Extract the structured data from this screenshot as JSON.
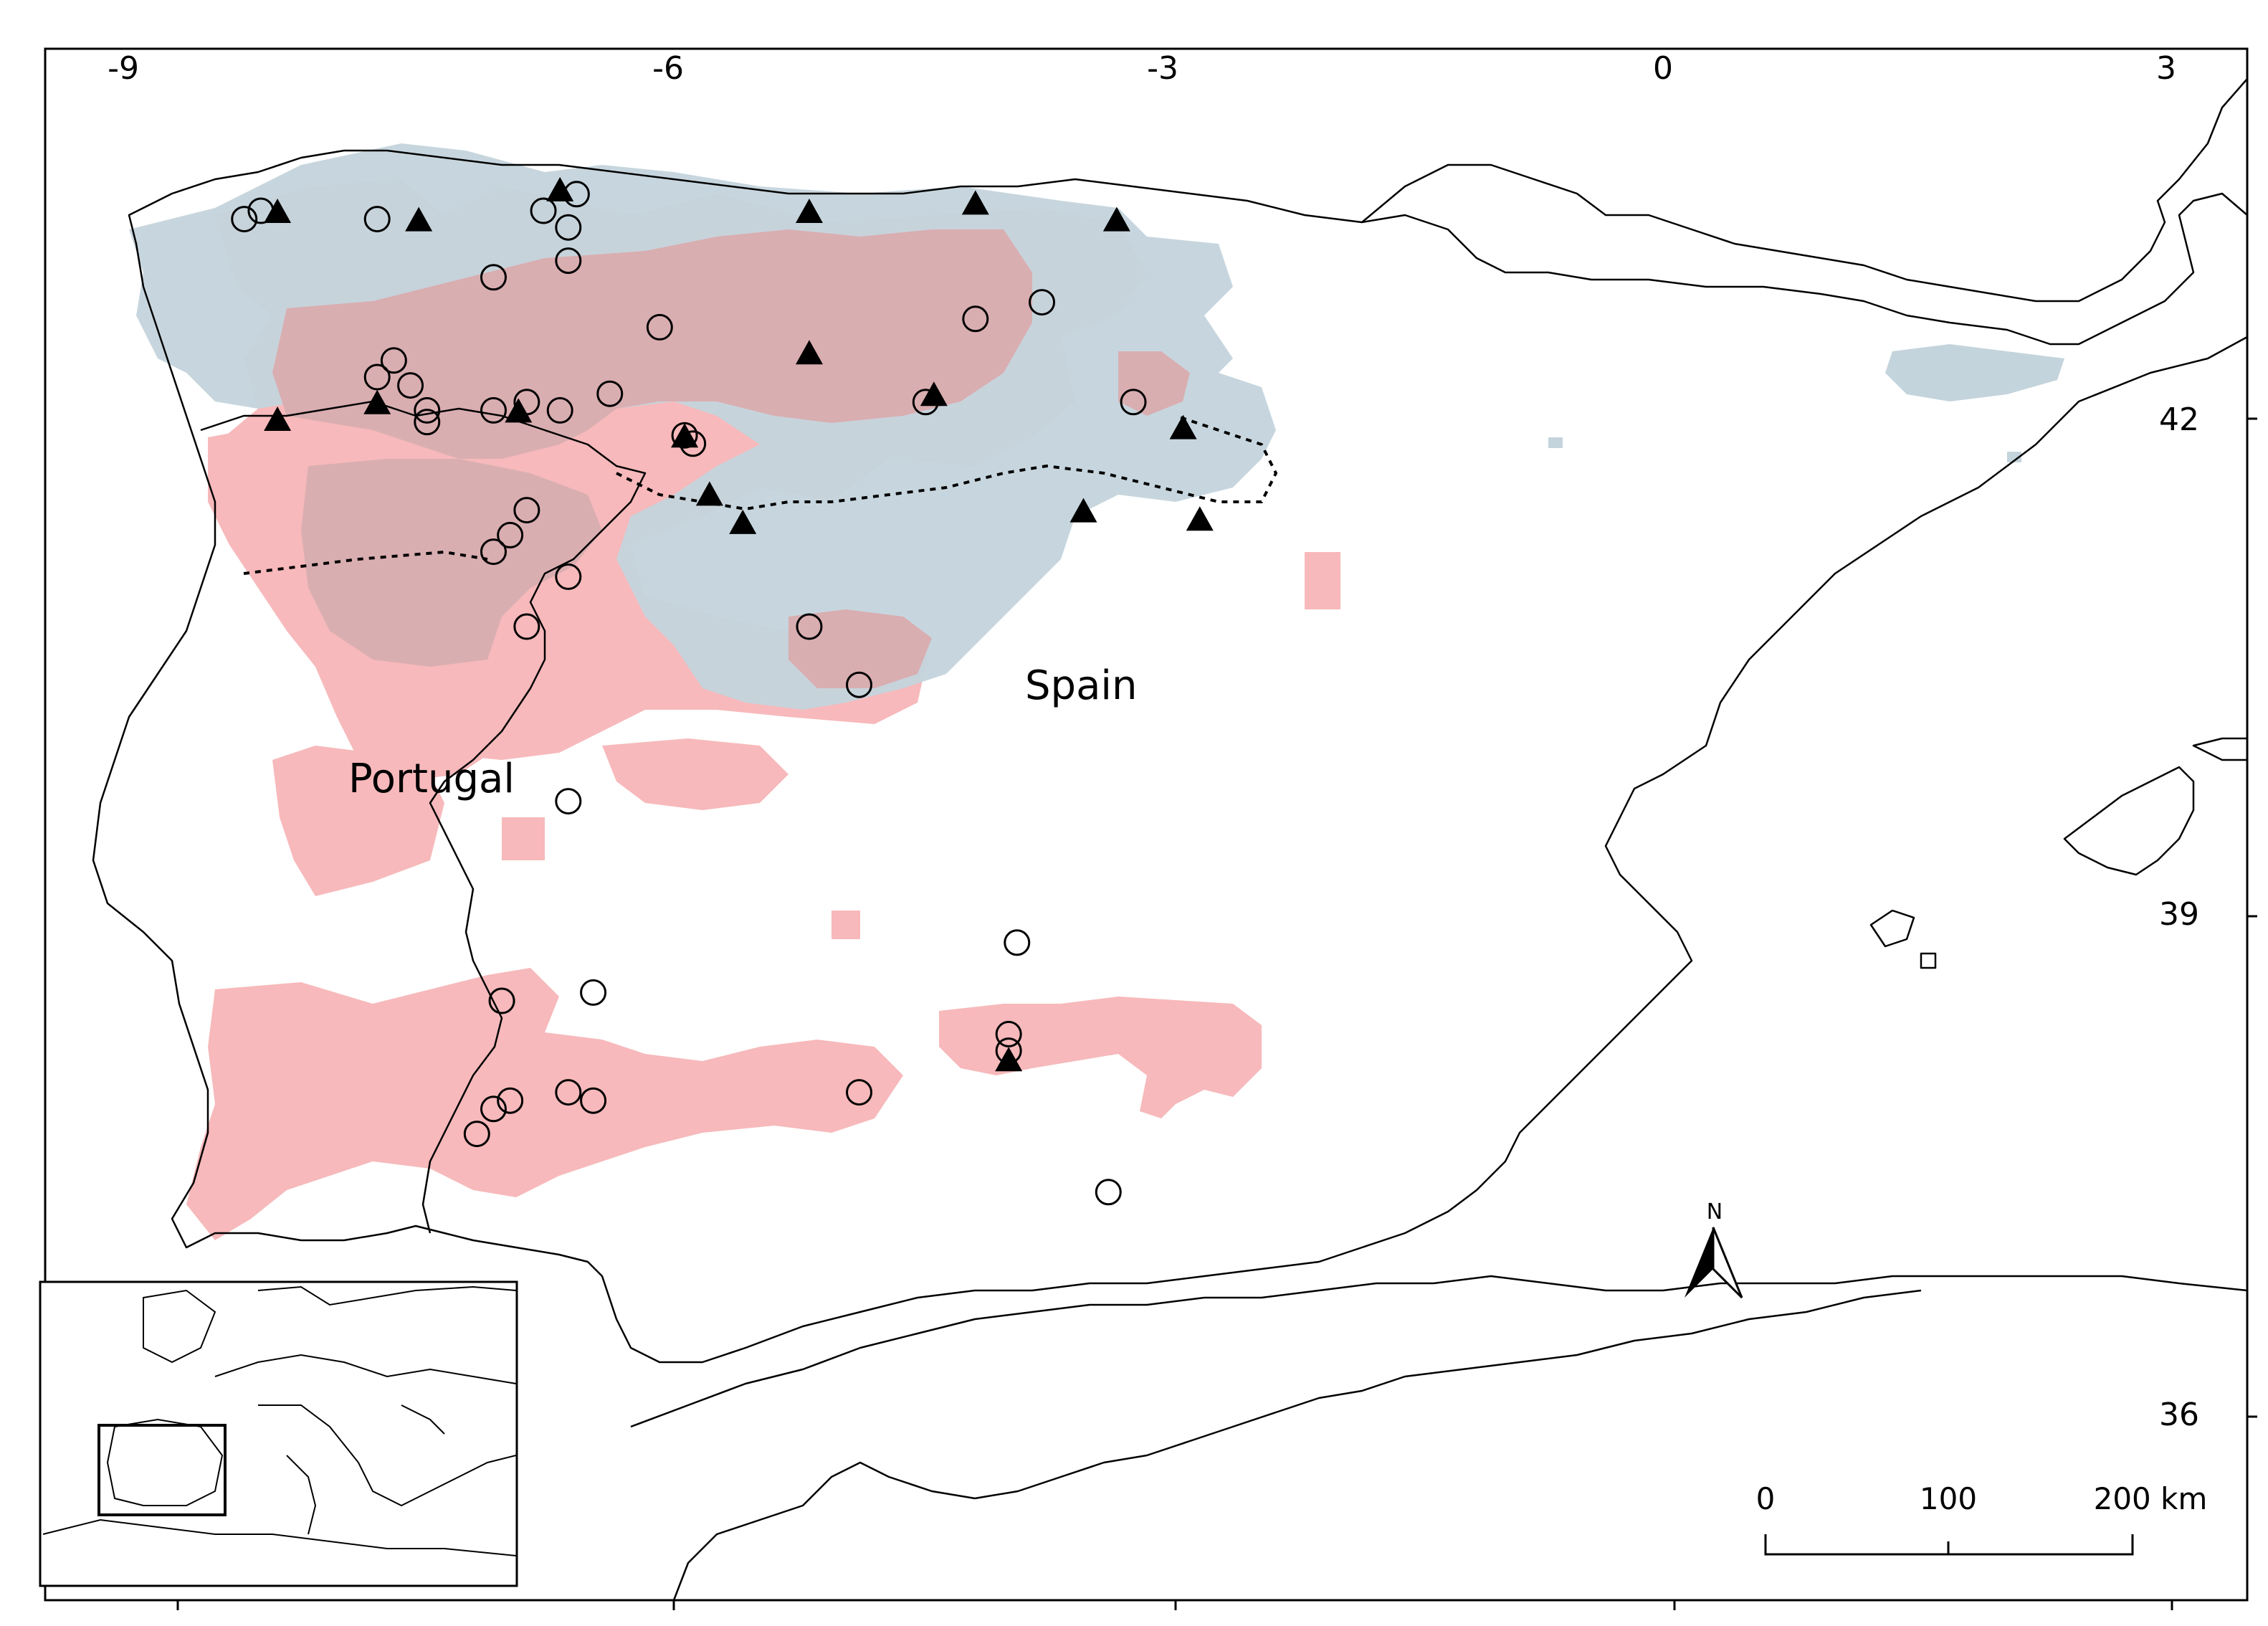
{
  "map": {
    "lon_ticks": [
      "-9",
      "-6",
      "-3",
      "0",
      "3"
    ],
    "lat_ticks": [
      "42",
      "39",
      "36"
    ],
    "countries": [
      "Spain",
      "Portugal"
    ],
    "north_label": "N",
    "scale_bar": {
      "labels": [
        "0",
        "100",
        "200 km"
      ]
    },
    "colors": {
      "range_pink": "#f7b9bb",
      "range_blue": "#c4d4dc",
      "range_overlap": "#d9aeb1",
      "marker": "#000000"
    }
  },
  "chart_data": {
    "type": "scatter",
    "x_range": [
      -9.3,
      3.5
    ],
    "y_range": [
      35.2,
      44.3
    ],
    "series": [
      {
        "marker": "open-circle",
        "points": [
          [
            -8.6,
            43.2
          ],
          [
            -8.5,
            43.25
          ],
          [
            -7.8,
            43.2
          ],
          [
            -6.8,
            43.25
          ],
          [
            -6.6,
            43.35
          ],
          [
            -6.65,
            43.15
          ],
          [
            -6.65,
            42.95
          ],
          [
            -7.1,
            42.85
          ],
          [
            -6.1,
            42.55
          ],
          [
            -7.8,
            42.25
          ],
          [
            -7.7,
            42.35
          ],
          [
            -7.6,
            42.2
          ],
          [
            -7.5,
            42.05
          ],
          [
            -7.5,
            41.98
          ],
          [
            -7.1,
            42.05
          ],
          [
            -6.9,
            42.1
          ],
          [
            -6.7,
            42.05
          ],
          [
            -6.4,
            42.15
          ],
          [
            -5.95,
            41.9
          ],
          [
            -5.9,
            41.85
          ],
          [
            -4.5,
            42.1
          ],
          [
            -4.2,
            42.6
          ],
          [
            -3.8,
            42.7
          ],
          [
            -3.25,
            42.1
          ],
          [
            -6.9,
            41.45
          ],
          [
            -7.0,
            41.3
          ],
          [
            -7.1,
            41.2
          ],
          [
            -6.65,
            41.05
          ],
          [
            -6.9,
            40.75
          ],
          [
            -5.2,
            40.75
          ],
          [
            -4.9,
            40.4
          ],
          [
            -6.65,
            39.7
          ],
          [
            -3.95,
            38.85
          ],
          [
            -6.5,
            38.55
          ],
          [
            -7.05,
            38.5
          ],
          [
            -4.0,
            38.3
          ],
          [
            -4.0,
            38.2
          ],
          [
            -6.65,
            37.95
          ],
          [
            -6.5,
            37.9
          ],
          [
            -7.0,
            37.9
          ],
          [
            -7.1,
            37.85
          ],
          [
            -7.2,
            37.7
          ],
          [
            -4.9,
            37.95
          ],
          [
            -3.4,
            37.35
          ]
        ]
      },
      {
        "marker": "filled-triangle",
        "points": [
          [
            -8.4,
            43.25
          ],
          [
            -7.55,
            43.2
          ],
          [
            -6.7,
            43.38
          ],
          [
            -5.2,
            43.25
          ],
          [
            -4.2,
            43.3
          ],
          [
            -3.35,
            43.2
          ],
          [
            -8.4,
            42.0
          ],
          [
            -7.8,
            42.1
          ],
          [
            -6.95,
            42.05
          ],
          [
            -5.2,
            42.4
          ],
          [
            -4.45,
            42.15
          ],
          [
            -2.95,
            41.95
          ],
          [
            -5.95,
            41.9
          ],
          [
            -5.8,
            41.55
          ],
          [
            -5.6,
            41.38
          ],
          [
            -3.55,
            41.45
          ],
          [
            -2.85,
            41.4
          ],
          [
            -4.0,
            38.15
          ]
        ]
      }
    ]
  }
}
